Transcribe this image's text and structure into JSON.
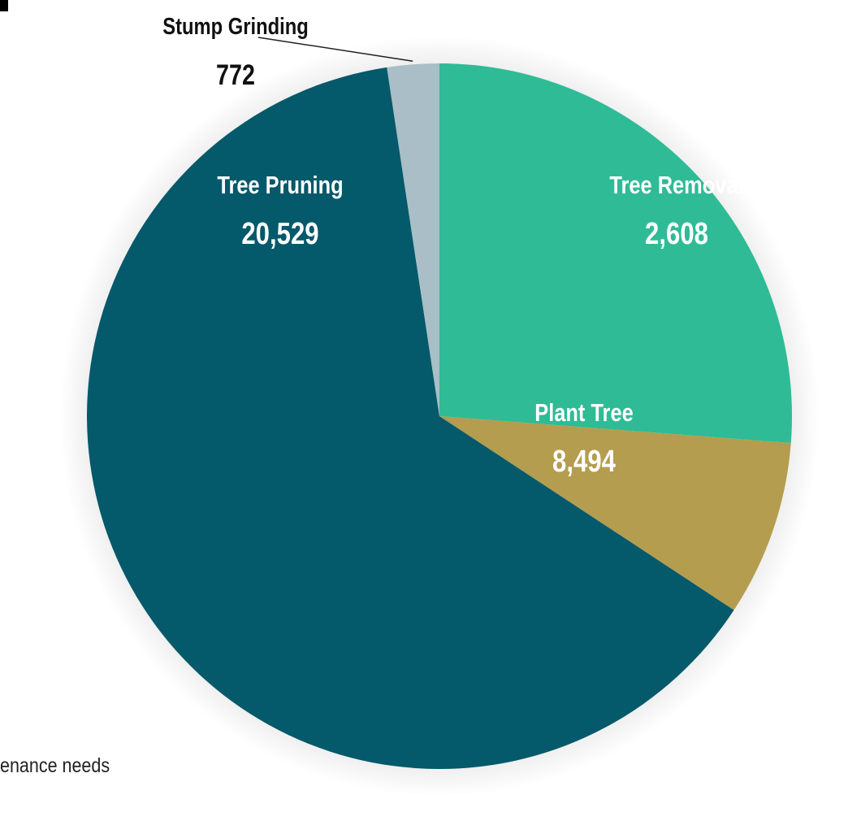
{
  "caption_fragment": "enance needs",
  "chart_data": {
    "type": "pie",
    "start_at": "12 o'clock",
    "direction": "clockwise",
    "slices": [
      {
        "label": "Plant Tree",
        "value": 8494,
        "value_text": "8,494",
        "color": "#2fbb96",
        "text_color": "#ffffff"
      },
      {
        "label": "Tree Removal",
        "value": 2608,
        "value_text": "2,608",
        "color": "#b49d4f",
        "text_color": "#ffffff"
      },
      {
        "label": "Tree Pruning",
        "value": 20529,
        "value_text": "20,529",
        "color": "#04596a",
        "text_color": "#ffffff"
      },
      {
        "label": "Stump Grinding",
        "value": 772,
        "value_text": "772",
        "color": "#a9bec6",
        "text_color": "#111111",
        "label_outside": true
      }
    ]
  }
}
